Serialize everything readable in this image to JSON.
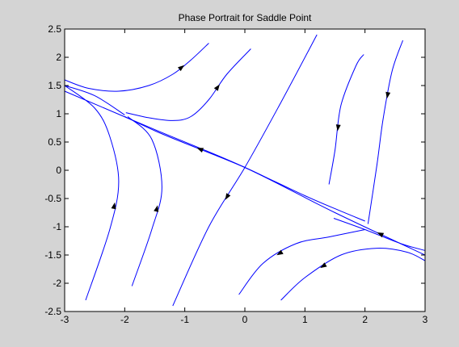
{
  "chart_data": {
    "type": "line",
    "title": "Phase Portrait for Saddle Point",
    "xlabel": "",
    "ylabel": "",
    "xlim": [
      -3,
      3
    ],
    "ylim": [
      -2.5,
      2.5
    ],
    "xticks": [
      -3,
      -2,
      -1,
      0,
      1,
      2,
      3
    ],
    "yticks": [
      2.5,
      2,
      1.5,
      1,
      0.5,
      0,
      -0.5,
      -1,
      -1.5,
      -2,
      -2.5
    ],
    "xtick_labels": [
      "-3",
      "-2",
      "-1",
      "0",
      "1",
      "2",
      "3"
    ],
    "ytick_labels": [
      "2.5",
      "2",
      "1.5",
      "1",
      "0.5",
      "0",
      "-0.5",
      "-1",
      "-1.5",
      "-2",
      "-2.5"
    ],
    "grid": false,
    "line_color": "#0000ff",
    "arrow_color": "#000000",
    "axes_background": "#ffffff",
    "figure_background": "#d4d4d4",
    "series": [
      {
        "points": [
          [
            -3,
            1.6
          ],
          [
            -2.6,
            1.45
          ],
          [
            -2.1,
            1.4
          ],
          [
            -1.6,
            1.5
          ],
          [
            -1.2,
            1.7
          ],
          [
            -0.9,
            1.95
          ],
          [
            -0.6,
            2.25
          ]
        ],
        "arrow": {
          "at": 4,
          "dir": 1
        }
      },
      {
        "points": [
          [
            -1.98,
            1.02
          ],
          [
            -1.6,
            0.93
          ],
          [
            -1.2,
            0.88
          ],
          [
            -0.9,
            0.95
          ],
          [
            -0.6,
            1.25
          ],
          [
            -0.3,
            1.7
          ],
          [
            0.1,
            2.15
          ]
        ],
        "arrow": {
          "at": 4,
          "dir": 1
        }
      },
      {
        "points": [
          [
            -1.2,
            -2.4
          ],
          [
            -0.6,
            -1.0
          ],
          [
            0,
            0.05
          ],
          [
            0.6,
            1.2
          ],
          [
            1.2,
            2.4
          ]
        ],
        "arrow": {
          "at": 1,
          "dir": -1
        }
      },
      {
        "points": [
          [
            1.4,
            -0.25
          ],
          [
            1.5,
            0.35
          ],
          [
            1.6,
            1.15
          ],
          [
            1.85,
            1.85
          ],
          [
            1.98,
            2.05
          ]
        ],
        "arrow": {
          "at": 1,
          "dir": -1
        }
      },
      {
        "points": [
          [
            2.05,
            -0.95
          ],
          [
            2.2,
            0.1
          ],
          [
            2.3,
            0.9
          ],
          [
            2.45,
            1.75
          ],
          [
            2.63,
            2.3
          ]
        ],
        "arrow": {
          "at": 2,
          "dir": -1
        }
      },
      {
        "points": [
          [
            -3,
            1.4
          ],
          [
            -1.5,
            0.72
          ],
          [
            0,
            0.05
          ],
          [
            1.5,
            -0.75
          ],
          [
            3,
            -1.5
          ]
        ],
        "arrow": {
          "at": 3,
          "dir": -1
        }
      },
      {
        "points": [
          [
            -2.0,
            0.95
          ],
          [
            -1.5,
            0.7
          ],
          [
            -1.0,
            0.48
          ],
          [
            -0.5,
            0.27
          ],
          [
            0,
            0.05
          ],
          [
            0.5,
            -0.2
          ],
          [
            1.0,
            -0.45
          ],
          [
            1.5,
            -0.68
          ],
          [
            2.0,
            -0.9
          ]
        ],
        "arrow": {
          "at": 2,
          "dir": -1
        }
      },
      {
        "points": [
          [
            -2.0,
            0.98
          ],
          [
            -2.5,
            1.32
          ],
          [
            -3,
            1.5
          ]
        ],
        "arrow": {
          "at": null,
          "dir": 1
        }
      },
      {
        "points": [
          [
            1.48,
            -0.85
          ],
          [
            2.0,
            -1.05
          ],
          [
            2.6,
            -1.3
          ],
          [
            3,
            -1.42
          ]
        ],
        "arrow": {
          "at": null,
          "dir": 1
        }
      },
      {
        "points": [
          [
            -3,
            1.5
          ],
          [
            -2.5,
            1.1
          ],
          [
            -2.25,
            0.6
          ],
          [
            -2.1,
            -0.2
          ],
          [
            -2.25,
            -1.05
          ],
          [
            -2.65,
            -2.3
          ]
        ],
        "arrow": {
          "at": 3,
          "dir": -1
        }
      },
      {
        "points": [
          [
            -1.95,
            0.95
          ],
          [
            -1.55,
            0.55
          ],
          [
            -1.38,
            -0.3
          ],
          [
            -1.55,
            -1.05
          ],
          [
            -1.88,
            -2.05
          ]
        ],
        "arrow": {
          "at": 2,
          "dir": -1
        }
      },
      {
        "points": [
          [
            -0.1,
            -2.2
          ],
          [
            0.3,
            -1.65
          ],
          [
            0.85,
            -1.3
          ],
          [
            1.4,
            -1.18
          ],
          [
            2.0,
            -1.05
          ]
        ],
        "arrow": {
          "at": 1,
          "dir": -1
        }
      },
      {
        "points": [
          [
            0.6,
            -2.3
          ],
          [
            1.0,
            -1.9
          ],
          [
            1.6,
            -1.5
          ],
          [
            2.2,
            -1.38
          ],
          [
            2.7,
            -1.45
          ],
          [
            3,
            -1.6
          ]
        ],
        "arrow": {
          "at": 1,
          "dir": -1
        }
      }
    ]
  }
}
